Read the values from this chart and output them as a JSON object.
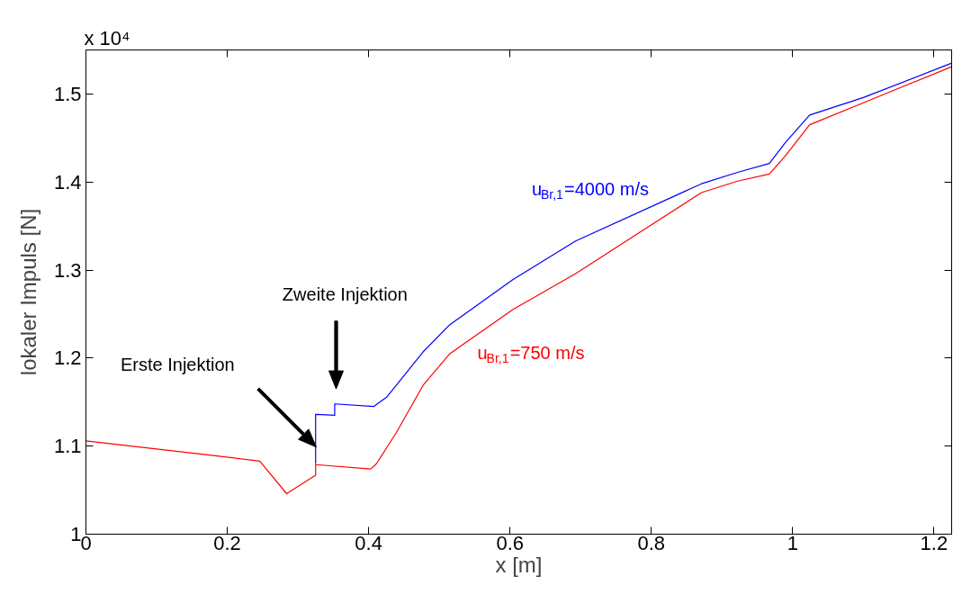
{
  "chart_data": {
    "type": "line",
    "xlabel": "x [m]",
    "ylabel": "lokaler Impuls [N]",
    "xlim": [
      0,
      1.225
    ],
    "ylim": [
      1,
      1.55
    ],
    "xticks": [
      0,
      0.2,
      0.4,
      0.6,
      0.8,
      1,
      1.2
    ],
    "yticks": [
      1,
      1.1,
      1.2,
      1.3,
      1.4,
      1.5
    ],
    "grid": false,
    "marker": "none",
    "line_style": "solid",
    "series": [
      {
        "name": "u$_{Br,1}$=4000 m/s",
        "color": "#0000ff",
        "x": [
          0.325,
          0.325,
          0.352,
          0.352,
          0.407,
          0.426,
          0.477,
          0.515,
          0.604,
          0.693,
          0.871,
          0.922,
          0.967,
          0.99,
          1.024,
          1.1,
          1.225
        ],
        "values": [
          1.08,
          1.136,
          1.135,
          1.148,
          1.145,
          1.156,
          1.207,
          1.238,
          1.289,
          1.333,
          1.398,
          1.411,
          1.421,
          1.445,
          1.476,
          1.496,
          1.535
        ]
      },
      {
        "name": "u$_{Br,1}$=750 m/s",
        "color": "#ff0000",
        "x": [
          0,
          0.172,
          0.246,
          0.284,
          0.325,
          0.325,
          0.403,
          0.411,
          0.439,
          0.477,
          0.515,
          0.604,
          0.693,
          0.871,
          0.922,
          0.967,
          0.99,
          1.024,
          1.1,
          1.225
        ],
        "values": [
          1.106,
          1.09,
          1.083,
          1.046,
          1.067,
          1.079,
          1.074,
          1.08,
          1.115,
          1.169,
          1.205,
          1.255,
          1.296,
          1.388,
          1.401,
          1.409,
          1.43,
          1.465,
          1.49,
          1.531
        ]
      }
    ],
    "annotations": [
      "x 10⁴",
      "Erste Injektion",
      "Zweite Injektion"
    ]
  }
}
